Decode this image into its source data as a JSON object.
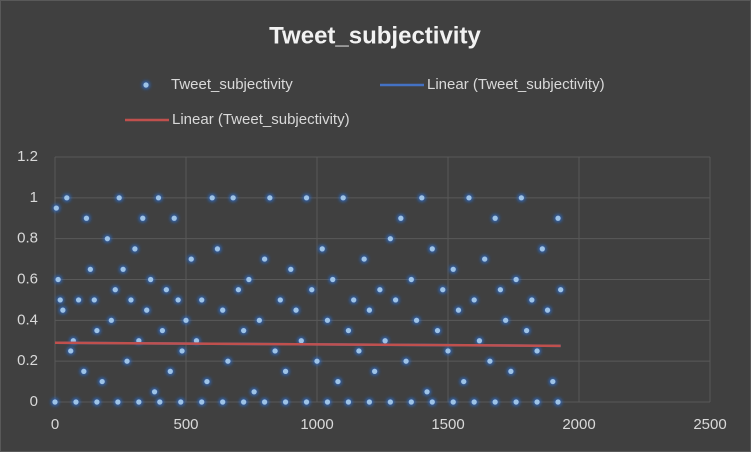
{
  "chart_data": {
    "type": "scatter",
    "title": "Tweet_subjectivity",
    "xlim": [
      0,
      2500
    ],
    "xticks": [
      0,
      500,
      1000,
      1500,
      2000,
      2500
    ],
    "ylim": [
      0,
      1.2
    ],
    "yticks": [
      0,
      0.2,
      0.4,
      0.6,
      0.8,
      1,
      1.2
    ],
    "grid": true,
    "series": [
      {
        "name": "Tweet_subjectivity",
        "type": "scatter",
        "color": "#9dc3e6",
        "x": [
          0,
          80,
          160,
          240,
          320,
          400,
          480,
          560,
          640,
          720,
          800,
          880,
          960,
          1040,
          1120,
          1200,
          1280,
          1360,
          1440,
          1520,
          1600,
          1680,
          1760,
          1840,
          1920,
          5,
          12,
          20,
          30,
          45,
          60,
          70,
          90,
          110,
          120,
          135,
          150,
          160,
          180,
          200,
          215,
          230,
          245,
          260,
          275,
          290,
          305,
          320,
          335,
          350,
          365,
          380,
          395,
          410,
          425,
          440,
          455,
          470,
          485,
          500,
          520,
          540,
          560,
          580,
          600,
          620,
          640,
          660,
          680,
          700,
          720,
          740,
          760,
          780,
          800,
          820,
          840,
          860,
          880,
          900,
          920,
          940,
          960,
          980,
          1000,
          1020,
          1040,
          1060,
          1080,
          1100,
          1120,
          1140,
          1160,
          1180,
          1200,
          1220,
          1240,
          1260,
          1280,
          1300,
          1320,
          1340,
          1360,
          1380,
          1400,
          1420,
          1440,
          1460,
          1480,
          1500,
          1520,
          1540,
          1560,
          1580,
          1600,
          1620,
          1640,
          1660,
          1680,
          1700,
          1720,
          1740,
          1760,
          1780,
          1800,
          1820,
          1840,
          1860,
          1880,
          1900,
          1920,
          1930
        ],
        "values": [
          0,
          0,
          0,
          0,
          0,
          0,
          0,
          0,
          0,
          0,
          0,
          0,
          0,
          0,
          0,
          0,
          0,
          0,
          0,
          0,
          0,
          0,
          0,
          0,
          0,
          0.95,
          0.6,
          0.5,
          0.45,
          1,
          0.25,
          0.3,
          0.5,
          0.15,
          0.9,
          0.65,
          0.5,
          0.35,
          0.1,
          0.8,
          0.4,
          0.55,
          1,
          0.65,
          0.2,
          0.5,
          0.75,
          0.3,
          0.9,
          0.45,
          0.6,
          0.05,
          1,
          0.35,
          0.55,
          0.15,
          0.9,
          0.5,
          0.25,
          0.4,
          0.7,
          0.3,
          0.5,
          0.1,
          1,
          0.75,
          0.45,
          0.2,
          1,
          0.55,
          0.35,
          0.6,
          0.05,
          0.4,
          0.7,
          1,
          0.25,
          0.5,
          0.15,
          0.65,
          0.45,
          0.3,
          1,
          0.55,
          0.2,
          0.75,
          0.4,
          0.6,
          0.1,
          1,
          0.35,
          0.5,
          0.25,
          0.7,
          0.45,
          0.15,
          0.55,
          0.3,
          0.8,
          0.5,
          0.9,
          0.2,
          0.6,
          0.4,
          1,
          0.05,
          0.75,
          0.35,
          0.55,
          0.25,
          0.65,
          0.45,
          0.1,
          1,
          0.5,
          0.3,
          0.7,
          0.2,
          0.9,
          0.55,
          0.4,
          0.15,
          0.6,
          1,
          0.35,
          0.5,
          0.25,
          0.75,
          0.45,
          0.1,
          0.9,
          0.55
        ]
      },
      {
        "name": "Linear (Tweet_subjectivity)",
        "type": "line",
        "color": "#4472c4",
        "x": [
          0,
          1930
        ],
        "values": [
          0.29,
          0.275
        ]
      },
      {
        "name": "Linear (Tweet_subjectivity)",
        "type": "line",
        "color": "#c0504d",
        "x": [
          0,
          1930
        ],
        "values": [
          0.29,
          0.275
        ]
      }
    ]
  }
}
